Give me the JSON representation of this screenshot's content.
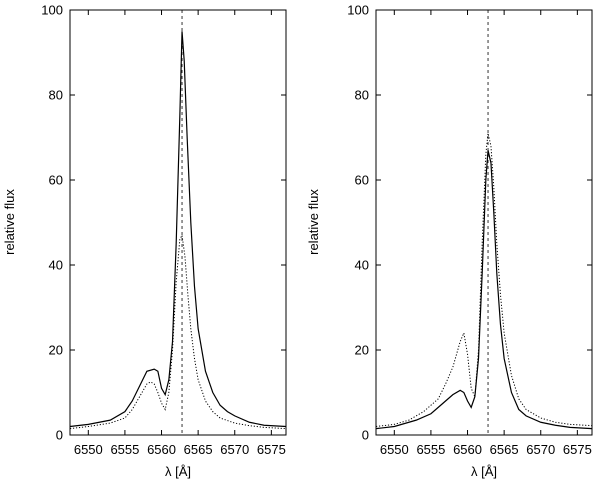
{
  "chart_data": [
    {
      "type": "line",
      "xlabel": "λ [Å]",
      "ylabel": "relative flux",
      "xlim": [
        6547.5,
        6577
      ],
      "ylim": [
        0,
        100
      ],
      "xticks": [
        6550,
        6555,
        6560,
        6565,
        6570,
        6575
      ],
      "yticks": [
        0,
        20,
        40,
        60,
        80,
        100
      ],
      "reference_line_x": 6562.8,
      "grid": false,
      "series": [
        {
          "style": "solid",
          "x": [
            6547.5,
            6550,
            6553,
            6555,
            6556,
            6557,
            6558,
            6559,
            6559.5,
            6560,
            6560.5,
            6561,
            6561.5,
            6562,
            6562.5,
            6562.8,
            6563.1,
            6563.5,
            6564,
            6564.5,
            6565,
            6566,
            6567,
            6568,
            6569,
            6570,
            6572,
            6574,
            6577
          ],
          "y": [
            2,
            2.5,
            3.5,
            5.5,
            8,
            11.5,
            15,
            15.5,
            15,
            11,
            9.5,
            13,
            22,
            45,
            75,
            95,
            88,
            70,
            50,
            35,
            25,
            15,
            10,
            7,
            5.5,
            4.5,
            3,
            2.3,
            2
          ]
        },
        {
          "style": "dotted",
          "x": [
            6547.5,
            6550,
            6553,
            6555,
            6556,
            6557,
            6558,
            6558.5,
            6559,
            6559.5,
            6560,
            6560.5,
            6561,
            6561.5,
            6562,
            6562.5,
            6562.8,
            6563.2,
            6563.6,
            6564,
            6564.5,
            6565,
            6566,
            6567,
            6568,
            6570,
            6572,
            6574,
            6577
          ],
          "y": [
            1.5,
            2,
            2.8,
            4,
            6,
            9,
            12,
            12.5,
            12,
            10,
            7.5,
            6,
            10,
            20,
            36,
            46,
            47,
            42,
            33,
            25,
            18,
            13,
            8,
            5.5,
            4,
            2.8,
            2.2,
            1.8,
            1.5
          ]
        }
      ]
    },
    {
      "type": "line",
      "xlabel": "λ [Å]",
      "ylabel": "relative flux",
      "xlim": [
        6547.5,
        6577
      ],
      "ylim": [
        0,
        100
      ],
      "xticks": [
        6550,
        6555,
        6560,
        6565,
        6570,
        6575
      ],
      "yticks": [
        0,
        20,
        40,
        60,
        80,
        100
      ],
      "reference_line_x": 6562.8,
      "grid": false,
      "series": [
        {
          "style": "solid",
          "x": [
            6547.5,
            6550,
            6553,
            6555,
            6556,
            6557,
            6558,
            6559,
            6559.5,
            6560,
            6560.5,
            6561,
            6561.5,
            6562,
            6562.5,
            6562.8,
            6563.2,
            6563.6,
            6564,
            6564.5,
            6565,
            6566,
            6567,
            6568,
            6570,
            6572,
            6574,
            6577
          ],
          "y": [
            1.5,
            2,
            3.5,
            5,
            6.5,
            8,
            9.5,
            10.5,
            10,
            8,
            6.5,
            9,
            18,
            38,
            60,
            67,
            64,
            52,
            38,
            26,
            18,
            10,
            6,
            4.5,
            3,
            2.3,
            1.8,
            1.5
          ]
        },
        {
          "style": "dotted",
          "x": [
            6547.5,
            6550,
            6552,
            6554,
            6556,
            6557,
            6558,
            6559,
            6559.5,
            6560,
            6560.5,
            6561,
            6561.5,
            6562,
            6562.5,
            6562.8,
            6563.2,
            6563.6,
            6564,
            6564.5,
            6565,
            6566,
            6567,
            6568,
            6570,
            6572,
            6574,
            6577
          ],
          "y": [
            2,
            2.5,
            3.5,
            5.5,
            8.5,
            12,
            16,
            22,
            24,
            19,
            11,
            9,
            20,
            45,
            66,
            71,
            68,
            58,
            45,
            33,
            24,
            14,
            8.5,
            6,
            4,
            3,
            2.5,
            2.2
          ]
        }
      ]
    }
  ]
}
